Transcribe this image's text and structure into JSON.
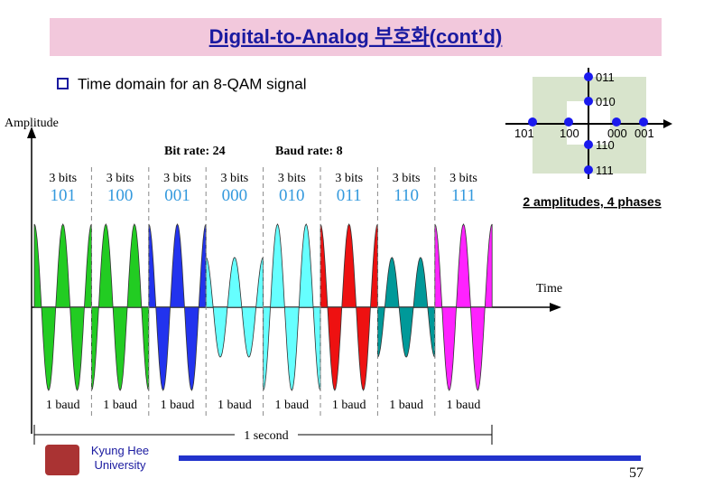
{
  "header": {
    "title": "Digital-to-Analog 부호화(cont’d)"
  },
  "bullet": "Time domain for an 8-QAM signal",
  "constellation": {
    "points": [
      {
        "label": "011"
      },
      {
        "label": "010"
      },
      {
        "label": "101"
      },
      {
        "label": "100"
      },
      {
        "label": "000"
      },
      {
        "label": "001"
      },
      {
        "label": "110"
      },
      {
        "label": "111"
      }
    ],
    "caption": "2 amplitudes, 4 phases"
  },
  "figure": {
    "y_axis_label": "Amplitude",
    "x_axis_label": "Time",
    "bit_rate": "Bit rate: 24",
    "baud_rate": "Baud rate: 8",
    "duration": "1 second",
    "segments": [
      {
        "bits": "3 bits",
        "code": "101",
        "baud": "1 baud",
        "color": "#22cc22"
      },
      {
        "bits": "3 bits",
        "code": "100",
        "baud": "1 baud",
        "color": "#22cc22"
      },
      {
        "bits": "3 bits",
        "code": "001",
        "baud": "1 baud",
        "color": "#2233ee"
      },
      {
        "bits": "3 bits",
        "code": "000",
        "baud": "1 baud",
        "color": "#66ffff"
      },
      {
        "bits": "3 bits",
        "code": "010",
        "baud": "1 baud",
        "color": "#66ffff"
      },
      {
        "bits": "3 bits",
        "code": "011",
        "baud": "1 baud",
        "color": "#ee1111"
      },
      {
        "bits": "3 bits",
        "code": "110",
        "baud": "1 baud",
        "color": "#009999"
      },
      {
        "bits": "3 bits",
        "code": "111",
        "baud": "1 baud",
        "color": "#ff22ff"
      }
    ]
  },
  "footer": {
    "institution": [
      "Kyung Hee",
      "University"
    ],
    "page": "57"
  }
}
